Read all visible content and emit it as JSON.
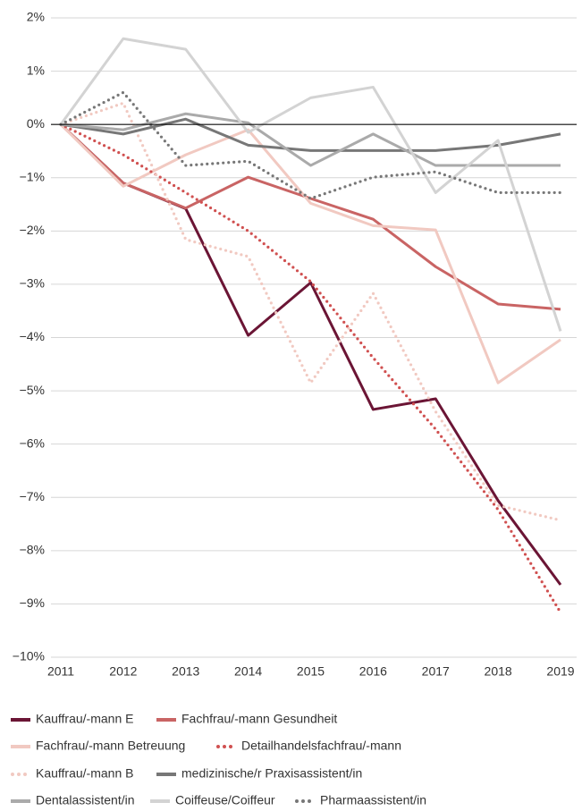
{
  "chart_data": {
    "type": "line",
    "x": [
      2011,
      2012,
      2013,
      2014,
      2015,
      2016,
      2017,
      2018,
      2019
    ],
    "xlim": [
      2011,
      2019
    ],
    "xticks": [
      2011,
      2012,
      2013,
      2014,
      2015,
      2016,
      2017,
      2018,
      2019
    ],
    "ylim": [
      -10,
      2
    ],
    "yticks": [
      {
        "value": 2,
        "label": "2%"
      },
      {
        "value": 1,
        "label": "1%"
      },
      {
        "value": 0,
        "label": "0%"
      },
      {
        "value": -1,
        "label": "−1%"
      },
      {
        "value": -2,
        "label": "−2%"
      },
      {
        "value": -3,
        "label": "−3%"
      },
      {
        "value": -4,
        "label": "−4%"
      },
      {
        "value": -5,
        "label": "−5%"
      },
      {
        "value": -6,
        "label": "−6%"
      },
      {
        "value": -7,
        "label": "−7%"
      },
      {
        "value": -8,
        "label": "−8%"
      },
      {
        "value": -9,
        "label": "−9%"
      },
      {
        "value": -10,
        "label": "−10%"
      }
    ],
    "grid": true,
    "zero_line": true,
    "legend": "bottom",
    "series": [
      {
        "name": "Kauffrau/-mann E",
        "color": "#6b1535",
        "style": "solid",
        "values": [
          0,
          -1.1,
          -1.58,
          -3.96,
          -2.97,
          -5.35,
          -5.15,
          -7.06,
          -8.64
        ]
      },
      {
        "name": "Fachfrau/-mann Gesundheit",
        "color": "#c96464",
        "style": "solid",
        "values": [
          0,
          -1.1,
          -1.57,
          -0.99,
          -1.39,
          -1.78,
          -2.67,
          -3.37,
          -3.47
        ]
      },
      {
        "name": "Fachfrau/-mann Betreuung",
        "color": "#f1c9c1",
        "style": "solid",
        "values": [
          0,
          -1.16,
          -0.57,
          -0.1,
          -1.48,
          -1.9,
          -1.98,
          -4.85,
          -4.04
        ]
      },
      {
        "name": "Detailhandelsfachfrau/-mann",
        "color": "#d05050",
        "style": "dotted",
        "values": [
          0,
          -0.57,
          -1.28,
          -2.0,
          -2.95,
          -4.38,
          -5.72,
          -7.23,
          -9.16
        ]
      },
      {
        "name": "Kauffrau/-mann B",
        "color": "#f1c9c1",
        "style": "dotted",
        "values": [
          0,
          0.4,
          -2.16,
          -2.48,
          -4.85,
          -3.17,
          -5.39,
          -7.15,
          -7.43
        ]
      },
      {
        "name": "medizinische/r Praxisassistent/in",
        "color": "#777777",
        "style": "solid",
        "values": [
          0,
          -0.18,
          0.1,
          -0.39,
          -0.49,
          -0.49,
          -0.49,
          -0.39,
          -0.18
        ]
      },
      {
        "name": "Dentalassistent/in",
        "color": "#aaaaaa",
        "style": "solid",
        "values": [
          0,
          -0.1,
          0.2,
          0.03,
          -0.77,
          -0.18,
          -0.77,
          -0.77,
          -0.77
        ]
      },
      {
        "name": "Coiffeuse/Coiffeur",
        "color": "#d3d3d3",
        "style": "solid",
        "values": [
          0,
          1.61,
          1.41,
          -0.15,
          0.5,
          0.7,
          -1.28,
          -0.3,
          -3.88
        ]
      },
      {
        "name": "Pharmaassistent/in",
        "color": "#777777",
        "style": "dotted",
        "values": [
          0,
          0.6,
          -0.77,
          -0.69,
          -1.39,
          -0.99,
          -0.89,
          -1.28,
          -1.28
        ]
      }
    ]
  }
}
